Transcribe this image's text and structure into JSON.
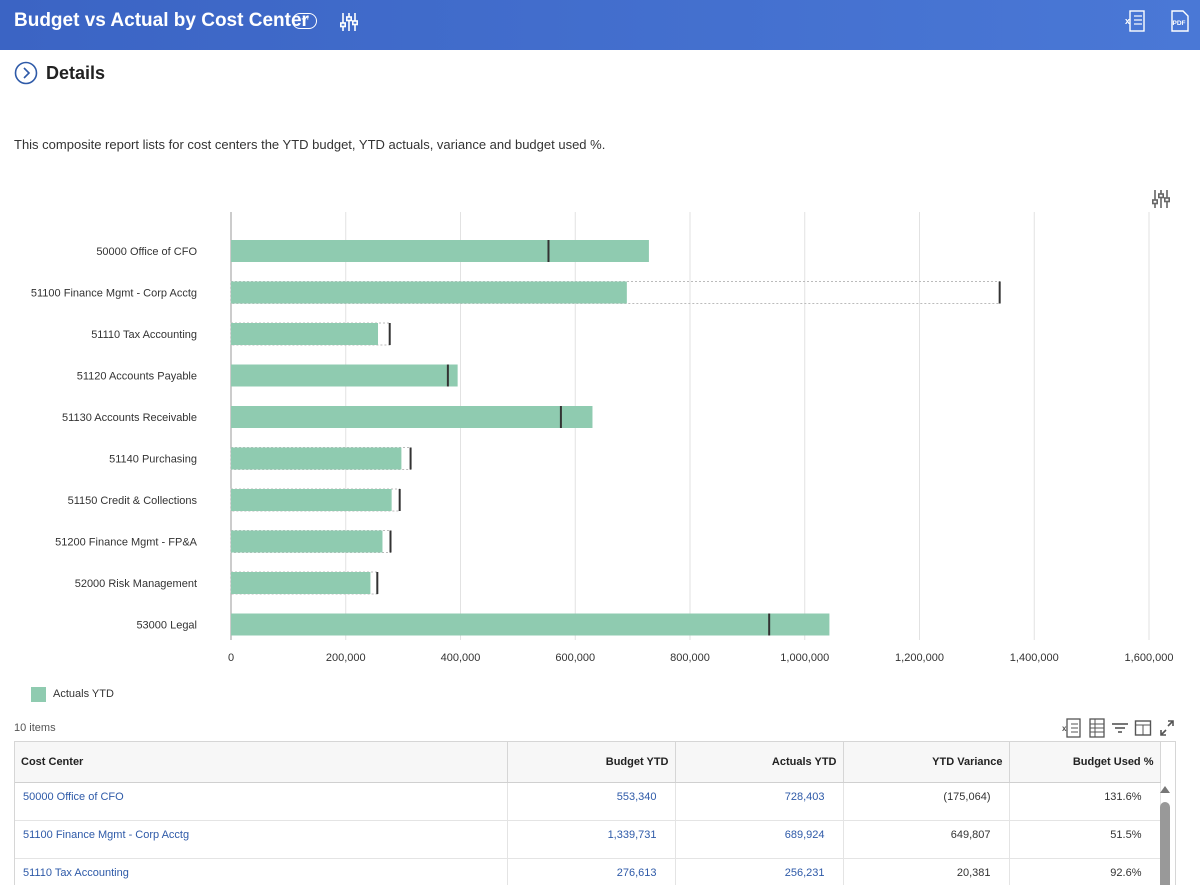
{
  "header": {
    "title": "Budget vs Actual by Cost Center",
    "more_label": "···"
  },
  "details": {
    "label": "Details",
    "description": "This composite report lists for cost centers the YTD budget, YTD actuals, variance and budget used %."
  },
  "colors": {
    "header": "#3b64c4",
    "bar": "#8fcbb0",
    "link": "#2e5aa8",
    "budget_marker": "#333333"
  },
  "chart_data": {
    "type": "bar",
    "orientation": "horizontal",
    "categories": [
      "50000 Office of CFO",
      "51100 Finance Mgmt - Corp Acctg",
      "51110 Tax Accounting",
      "51120 Accounts Payable",
      "51130 Accounts Receivable",
      "51140 Purchasing",
      "51150 Credit & Collections",
      "51200 Finance Mgmt - FP&A",
      "52000 Risk Management",
      "53000 Legal"
    ],
    "series": [
      {
        "name": "Actuals YTD",
        "values": [
          728403,
          689924,
          256231,
          395000,
          630000,
          297000,
          280000,
          264000,
          243000,
          1043000
        ]
      }
    ],
    "budget_markers": [
      553340,
      1339731,
      276613,
      378000,
      575000,
      313000,
      294000,
      278000,
      255000,
      938000
    ],
    "xlim": [
      0,
      1600000
    ],
    "xticks": [
      "0",
      "200,000",
      "400,000",
      "600,000",
      "800,000",
      "1,000,000",
      "1,200,000",
      "1,400,000",
      "1,600,000"
    ],
    "xtick_values": [
      0,
      200000,
      400000,
      600000,
      800000,
      1000000,
      1200000,
      1400000,
      1600000
    ],
    "grid": "vertical",
    "legend": "bottom-left"
  },
  "legend": {
    "label": "Actuals YTD"
  },
  "table": {
    "count_label": "10 items",
    "columns": [
      "Cost Center",
      "Budget YTD",
      "Actuals YTD",
      "YTD Variance",
      "Budget Used %"
    ],
    "rows": [
      {
        "cost_center": "50000 Office of CFO",
        "budget": "553,340",
        "actuals": "728,403",
        "variance": "(175,064)",
        "used": "131.6%"
      },
      {
        "cost_center": "51100 Finance Mgmt - Corp Acctg",
        "budget": "1,339,731",
        "actuals": "689,924",
        "variance": "649,807",
        "used": "51.5%"
      },
      {
        "cost_center": "51110 Tax Accounting",
        "budget": "276,613",
        "actuals": "256,231",
        "variance": "20,381",
        "used": "92.6%"
      }
    ]
  }
}
